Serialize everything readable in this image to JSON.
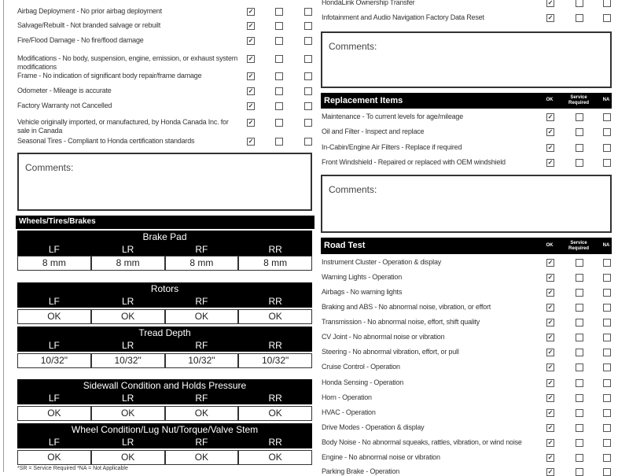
{
  "left_items": [
    {
      "label": "Airbag Deployment - No prior airbag deployment",
      "ok": true,
      "sr": false,
      "na": false
    },
    {
      "label": "Salvage/Rebuilt - Not branded salvage or rebuilt",
      "ok": true,
      "sr": false,
      "na": false
    },
    {
      "label": "Fire/Flood Damage - No fire/flood damage",
      "ok": true,
      "sr": false,
      "na": false
    },
    {
      "label": "Modifications - No body, suspension, engine, emission, or exhaust system modifications",
      "ok": true,
      "sr": false,
      "na": false
    },
    {
      "label": "Frame - No indication of significant body repair/frame damage",
      "ok": true,
      "sr": false,
      "na": false
    },
    {
      "label": "Odometer - Mileage is accurate",
      "ok": true,
      "sr": false,
      "na": false
    },
    {
      "label": "Factory Warranty not Cancelled",
      "ok": true,
      "sr": false,
      "na": false
    },
    {
      "label": "Vehicle originally imported, or manufactured, by Honda Canada Inc. for sale in Canada",
      "ok": true,
      "sr": false,
      "na": false
    },
    {
      "label": "Seasonal Tires - Compliant to Honda certification standards",
      "ok": true,
      "sr": false,
      "na": false
    }
  ],
  "left_comments": "Comments:",
  "wheels": {
    "header": "Wheels/Tires/Brakes",
    "tables": [
      {
        "title": "Brake Pad",
        "heads": [
          "LF",
          "LR",
          "RF",
          "RR"
        ],
        "values": [
          "8 mm",
          "8 mm",
          "8 mm",
          "8 mm"
        ]
      },
      {
        "title": "Rotors",
        "heads": [
          "LF",
          "LR",
          "RF",
          "RR"
        ],
        "values": [
          "OK",
          "OK",
          "OK",
          "OK"
        ]
      },
      {
        "title": "Tread Depth",
        "heads": [
          "LF",
          "LR",
          "RF",
          "RR"
        ],
        "values": [
          "10/32\"",
          "10/32\"",
          "10/32\"",
          "10/32\""
        ]
      },
      {
        "title": "Sidewall Condition and Holds Pressure",
        "heads": [
          "LF",
          "LR",
          "RF",
          "RR"
        ],
        "values": [
          "OK",
          "OK",
          "OK",
          "OK"
        ]
      },
      {
        "title": "Wheel Condition/Lug Nut/Torque/Valve Stem",
        "heads": [
          "LF",
          "LR",
          "RF",
          "RR"
        ],
        "values": [
          "OK",
          "OK",
          "OK",
          "OK"
        ]
      }
    ],
    "footnote": "*SR = Service Required   *NA = Not Applicable"
  },
  "top_right_items": [
    {
      "label": "HondaLink Ownership Transfer",
      "ok": true,
      "sr": false,
      "na": false
    },
    {
      "label": "Infotainment and Audio Navigation Factory Data Reset",
      "ok": true,
      "sr": false,
      "na": false
    }
  ],
  "right_comments_1": "Comments:",
  "replacement": {
    "title": "Replacement Items",
    "col_ok": "OK",
    "col_sr": "Service Required",
    "col_na": "NA",
    "items": [
      {
        "label": "Maintenance - To current levels for age/mileage",
        "ok": true,
        "sr": false,
        "na": false
      },
      {
        "label": "Oil and Filter - Inspect and replace",
        "ok": true,
        "sr": false,
        "na": false
      },
      {
        "label": "In-Cabin/Engine Air Filters - Replace if required",
        "ok": true,
        "sr": false,
        "na": false
      },
      {
        "label": "Front Windshield - Repaired or replaced with OEM windshield",
        "ok": true,
        "sr": false,
        "na": false
      }
    ]
  },
  "right_comments_2": "Comments:",
  "road_test": {
    "title": "Road Test",
    "col_ok": "OK",
    "col_sr": "Service Required",
    "col_na": "NA",
    "items": [
      {
        "label": "Instrument Cluster - Operation & display",
        "ok": true,
        "sr": false,
        "na": false
      },
      {
        "label": "Warning Lights - Operation",
        "ok": true,
        "sr": false,
        "na": false
      },
      {
        "label": "Airbags - No warning lights",
        "ok": true,
        "sr": false,
        "na": false
      },
      {
        "label": "Braking and ABS - No abnormal noise, vibration, or effort",
        "ok": true,
        "sr": false,
        "na": false
      },
      {
        "label": "Transmission - No abnormal noise, effort, shift quality",
        "ok": true,
        "sr": false,
        "na": false
      },
      {
        "label": "CV Joint - No abnormal noise or vibration",
        "ok": true,
        "sr": false,
        "na": false
      },
      {
        "label": "Steering - No abnormal vibration, effort, or pull",
        "ok": true,
        "sr": false,
        "na": false
      },
      {
        "label": "Cruise Control - Operation",
        "ok": true,
        "sr": false,
        "na": false
      },
      {
        "label": "Honda Sensing - Operation",
        "ok": true,
        "sr": false,
        "na": false
      },
      {
        "label": "Horn - Operation",
        "ok": true,
        "sr": false,
        "na": false
      },
      {
        "label": "HVAC - Operation",
        "ok": true,
        "sr": false,
        "na": false
      },
      {
        "label": "Drive Modes - Operation & display",
        "ok": true,
        "sr": false,
        "na": false
      },
      {
        "label": "Body Noise - No abnormal squeaks, rattles, vibration, or wind noise",
        "ok": true,
        "sr": false,
        "na": false
      },
      {
        "label": "Engine - No abnormal noise or vibration",
        "ok": true,
        "sr": false,
        "na": false
      },
      {
        "label": "Parking Brake - Operation",
        "ok": true,
        "sr": false,
        "na": false
      }
    ]
  }
}
